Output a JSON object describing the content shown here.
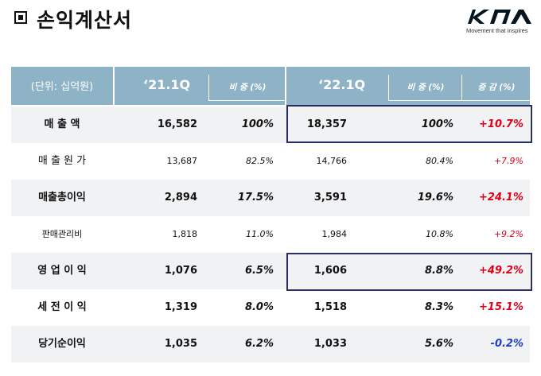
{
  "header": {
    "title": "손익계산서"
  },
  "brand": {
    "tagline": "Movement that inspires"
  },
  "table": {
    "unit": "(단위: 십억원)",
    "period_a": "‘21.1Q",
    "period_b": "‘22.1Q",
    "col_ratio": "비 중 (%)",
    "col_change": "증 감 (%)",
    "rows": [
      {
        "label": "매 출 액",
        "a": "16,582",
        "ra": "100%",
        "b": "18,357",
        "rb": "100%",
        "chg": "+10.7%"
      },
      {
        "label": "매 출 원 가",
        "a": "13,687",
        "ra": "82.5%",
        "b": "14,766",
        "rb": "80.4%",
        "chg": "+7.9%"
      },
      {
        "label": "매출총이익",
        "a": "2,894",
        "ra": "17.5%",
        "b": "3,591",
        "rb": "19.6%",
        "chg": "+24.1%"
      },
      {
        "label": "판매관리비",
        "a": "1,818",
        "ra": "11.0%",
        "b": "1,984",
        "rb": "10.8%",
        "chg": "+9.2%"
      },
      {
        "label": "영 업 이 익",
        "a": "1,076",
        "ra": "6.5%",
        "b": "1,606",
        "rb": "8.8%",
        "chg": "+49.2%"
      },
      {
        "label": "세 전 이 익",
        "a": "1,319",
        "ra": "8.0%",
        "b": "1,518",
        "rb": "8.3%",
        "chg": "+15.1%"
      },
      {
        "label": "당기순이익",
        "a": "1,035",
        "ra": "6.2%",
        "b": "1,033",
        "rb": "5.6%",
        "chg": "-0.2%"
      }
    ]
  },
  "colors": {
    "header_bg": "#8fb3c6",
    "highlight_border": "#2a2d62",
    "positive": "#e0001a",
    "negative": "#1f3fc8"
  }
}
